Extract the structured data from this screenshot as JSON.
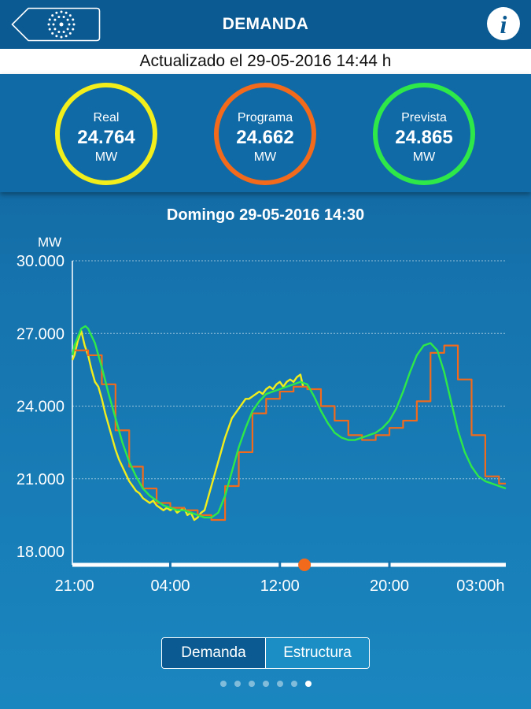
{
  "header": {
    "title": "DEMANDA",
    "info_label": "i"
  },
  "updated": "Actualizado el 29-05-2016 14:44 h",
  "gauges": [
    {
      "label": "Real",
      "value": "24.764",
      "unit": "MW",
      "color": "#f2ee1c"
    },
    {
      "label": "Programa",
      "value": "24.662",
      "unit": "MW",
      "color": "#f26a1b"
    },
    {
      "label": "Prevista",
      "value": "24.865",
      "unit": "MW",
      "color": "#2ee84a"
    }
  ],
  "chart_title": "Domingo 29-05-2016 14:30",
  "chart_data": {
    "type": "line",
    "title": "Domingo 29-05-2016 14:30",
    "ylabel": "MW",
    "ylim": [
      18000,
      30000
    ],
    "y_ticks": [
      "30.000",
      "27.000",
      "24.000",
      "21.000",
      "18.000"
    ],
    "y_tick_values": [
      30000,
      27000,
      24000,
      21000,
      18000
    ],
    "x_ticks": [
      "21:00",
      "04:00",
      "12:00",
      "20:00",
      "03:00h"
    ],
    "x_tick_hours": [
      21,
      28,
      36,
      44,
      51
    ],
    "x_range_hours": [
      20.85,
      52.5
    ],
    "grid": true,
    "current_marker_hour": 37.8,
    "series": [
      {
        "name": "Real",
        "color": "#f2ee1c",
        "x": [
          20.85,
          21.0,
          21.25,
          21.5,
          21.75,
          22.0,
          22.25,
          22.5,
          22.75,
          23.0,
          23.25,
          23.5,
          23.75,
          24.0,
          24.25,
          24.5,
          24.75,
          25.0,
          25.25,
          25.5,
          25.75,
          26.0,
          26.25,
          26.5,
          26.75,
          27.0,
          27.25,
          27.5,
          27.75,
          28.0,
          28.25,
          28.5,
          28.75,
          29.0,
          29.25,
          29.5,
          29.75,
          30.0,
          30.25,
          30.5,
          30.75,
          31.0,
          31.25,
          31.5,
          31.75,
          32.0,
          32.25,
          32.5,
          32.75,
          33.0,
          33.25,
          33.5,
          33.75,
          34.0,
          34.25,
          34.5,
          34.75,
          35.0,
          35.25,
          35.5,
          35.75,
          36.0,
          36.25,
          36.5,
          36.75,
          37.0,
          37.25,
          37.5,
          37.7
        ],
        "y": [
          25900,
          26100,
          26700,
          27100,
          26500,
          26100,
          25500,
          25000,
          24800,
          24300,
          23700,
          23200,
          22700,
          22200,
          21800,
          21500,
          21200,
          20900,
          20700,
          20500,
          20400,
          20200,
          20100,
          20000,
          20100,
          19900,
          19800,
          19700,
          19800,
          19700,
          19800,
          19600,
          19700,
          19800,
          19500,
          19600,
          19300,
          19400,
          19600,
          19700,
          20200,
          20700,
          21200,
          21700,
          22200,
          22700,
          23100,
          23500,
          23700,
          23900,
          24100,
          24300,
          24300,
          24400,
          24500,
          24600,
          24500,
          24700,
          24800,
          24700,
          24900,
          25000,
          24800,
          25000,
          25100,
          25000,
          25200,
          25300,
          24800
        ]
      },
      {
        "name": "Programa",
        "color": "#f26a1b",
        "x": [
          20.85,
          21.0,
          22.0,
          23.0,
          24.0,
          25.0,
          26.0,
          27.0,
          28.0,
          29.0,
          30.0,
          31.0,
          32.0,
          33.0,
          34.0,
          35.0,
          36.0,
          37.0,
          38.0,
          39.0,
          40.0,
          41.0,
          42.0,
          43.0,
          44.0,
          45.0,
          46.0,
          47.0,
          48.0,
          49.0,
          50.0,
          51.0,
          52.0,
          52.5
        ],
        "y": [
          26300,
          26300,
          26100,
          24900,
          23000,
          21500,
          20600,
          20000,
          19800,
          19700,
          19500,
          19300,
          20700,
          22100,
          23700,
          24300,
          24600,
          24800,
          24700,
          24000,
          23400,
          22800,
          22600,
          22800,
          23100,
          23400,
          24200,
          26200,
          26500,
          25100,
          22800,
          21100,
          20800,
          20800
        ]
      },
      {
        "name": "Prevista",
        "color": "#2ee84a",
        "x": [
          20.85,
          21.0,
          21.5,
          21.8,
          22.0,
          22.5,
          23.0,
          23.5,
          24.0,
          24.5,
          25.0,
          25.5,
          26.0,
          26.5,
          27.0,
          27.5,
          28.0,
          28.5,
          29.0,
          29.5,
          30.0,
          30.5,
          31.0,
          31.5,
          32.0,
          32.5,
          33.0,
          33.5,
          34.0,
          34.5,
          35.0,
          35.5,
          36.0,
          36.5,
          37.0,
          37.5,
          38.0,
          38.5,
          39.0,
          39.5,
          40.0,
          40.5,
          41.0,
          41.5,
          42.0,
          42.5,
          43.0,
          43.5,
          44.0,
          44.5,
          45.0,
          45.5,
          46.0,
          46.5,
          47.0,
          47.5,
          48.0,
          48.5,
          49.0,
          49.5,
          50.0,
          50.5,
          51.0,
          51.5,
          52.0,
          52.5
        ],
        "y": [
          26100,
          26500,
          27200,
          27300,
          27200,
          26600,
          25600,
          24500,
          23500,
          22500,
          21700,
          21100,
          20600,
          20300,
          20100,
          19900,
          19800,
          19700,
          19700,
          19600,
          19500,
          19400,
          19400,
          19600,
          20300,
          21300,
          22300,
          23100,
          23800,
          24200,
          24500,
          24600,
          24700,
          24800,
          24900,
          25000,
          24900,
          24400,
          23800,
          23300,
          22900,
          22700,
          22600,
          22600,
          22700,
          22800,
          22900,
          23100,
          23400,
          23900,
          24600,
          25400,
          26100,
          26500,
          26600,
          26300,
          25400,
          24200,
          23000,
          22100,
          21500,
          21100,
          20900,
          20800,
          20700,
          20600
        ]
      }
    ]
  },
  "segmented": {
    "demanda": "Demanda",
    "estructura": "Estructura"
  },
  "page_indicator": {
    "count": 7,
    "active": 6
  }
}
